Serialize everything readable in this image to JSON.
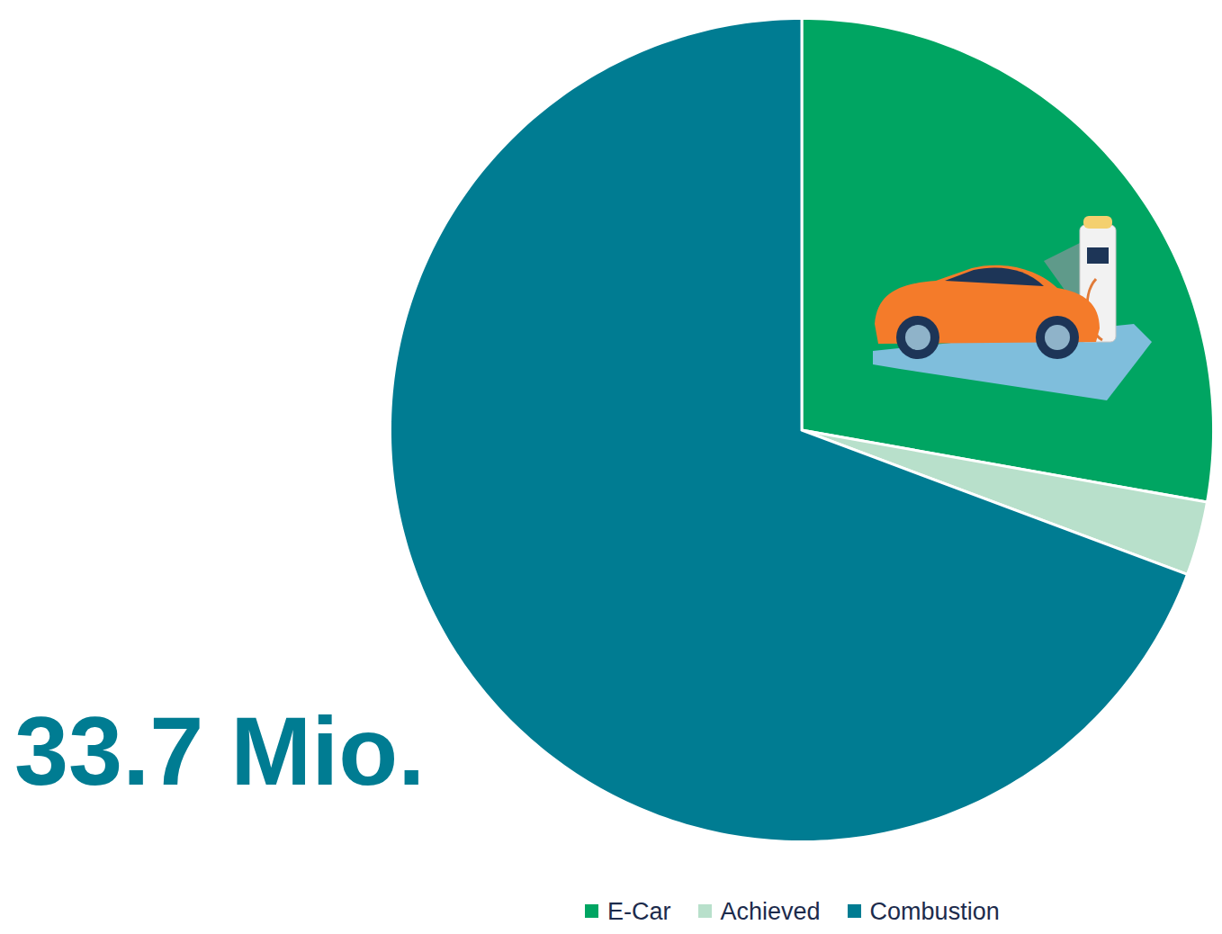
{
  "chart_data": {
    "type": "pie",
    "categories": [
      "E-Car",
      "Achieved",
      "Combustion"
    ],
    "values": [
      27.8,
      2.9,
      69.3
    ],
    "colors": [
      "#00A562",
      "#B8E0CB",
      "#007C92"
    ],
    "annotations": [
      "33.7 Mio."
    ],
    "legend": "bottom"
  }
}
